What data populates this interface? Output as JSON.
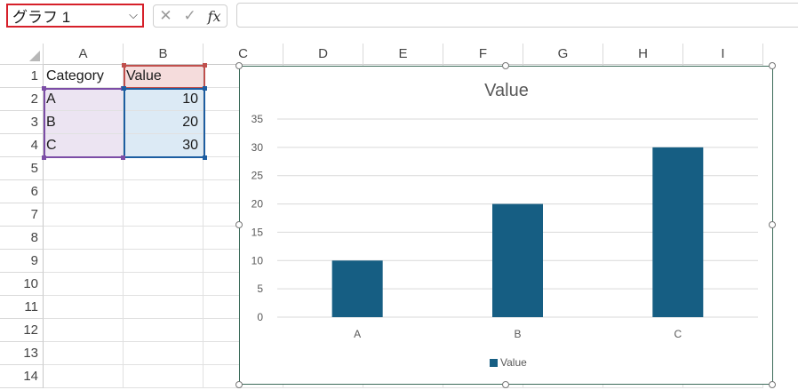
{
  "formula_bar": {
    "name_box": "グラフ 1",
    "cancel_glyph": "✕",
    "enter_glyph": "✓",
    "fx_glyph": "fx",
    "formula_value": ""
  },
  "columns": [
    "A",
    "B",
    "C",
    "D",
    "E",
    "F",
    "G",
    "H",
    "I"
  ],
  "rows": [
    "1",
    "2",
    "3",
    "4",
    "5",
    "6",
    "7",
    "8",
    "9",
    "10",
    "11",
    "12",
    "13",
    "14"
  ],
  "cells": {
    "A1": "Category",
    "B1": "Value",
    "A2": "A",
    "B2": "10",
    "A3": "B",
    "B3": "20",
    "A4": "C",
    "B4": "30"
  },
  "colors": {
    "series": "#165e83",
    "name_box_border": "#d6202a",
    "category_range": "#7c4da6",
    "value_range": "#1d5ea1",
    "header_range": "#c0504d"
  },
  "chart_data": {
    "type": "bar",
    "title": "Value",
    "categories": [
      "A",
      "B",
      "C"
    ],
    "series": [
      {
        "name": "Value",
        "values": [
          10,
          20,
          30
        ]
      }
    ],
    "ylim": [
      0,
      35
    ],
    "yticks": [
      0,
      5,
      10,
      15,
      20,
      25,
      30,
      35
    ],
    "grid": true,
    "legend": "bottom"
  }
}
